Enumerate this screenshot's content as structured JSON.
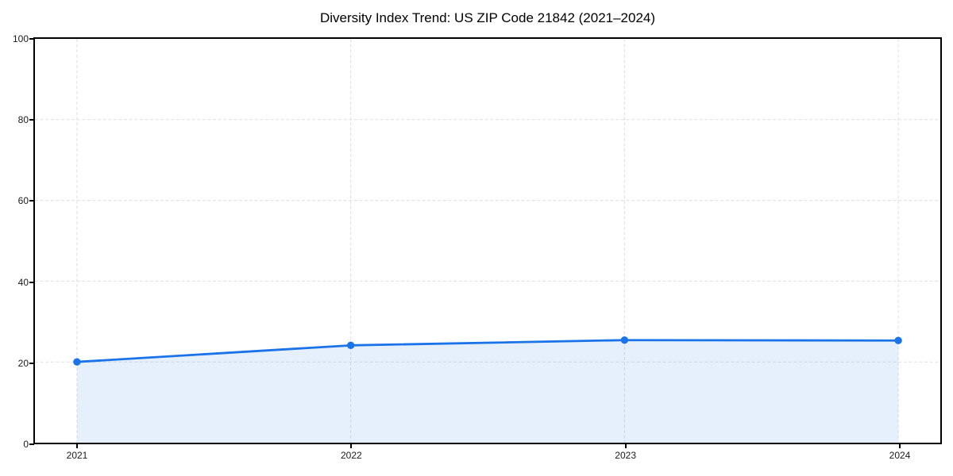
{
  "page": {
    "background": "#ffffff"
  },
  "chart_data": {
    "type": "line",
    "title": "Diversity Index Trend: US ZIP Code 21842 (2021–2024)",
    "x": [
      2021,
      2022,
      2023,
      2024
    ],
    "series": [
      {
        "name": "Diversity Index",
        "values": [
          20.0,
          24.1,
          25.4,
          25.3
        ]
      }
    ],
    "xlabel": "",
    "ylabel": "",
    "ylim": [
      0,
      100
    ],
    "yticks": [
      0,
      20,
      40,
      60,
      80,
      100
    ],
    "xtick_labels": [
      "2021",
      "2022",
      "2023",
      "2024"
    ],
    "grid": true,
    "grid_style": "dashed",
    "legend_position": "none",
    "area_fill": true,
    "marker": "circle",
    "colors": {
      "line": "#1a73e8",
      "marker": "#1a73e8",
      "fill": "rgba(26,115,232,0.11)",
      "grid": "#dfdfe3",
      "spine": "#000000",
      "text": "#1a1a1a",
      "title": "#000000"
    }
  }
}
